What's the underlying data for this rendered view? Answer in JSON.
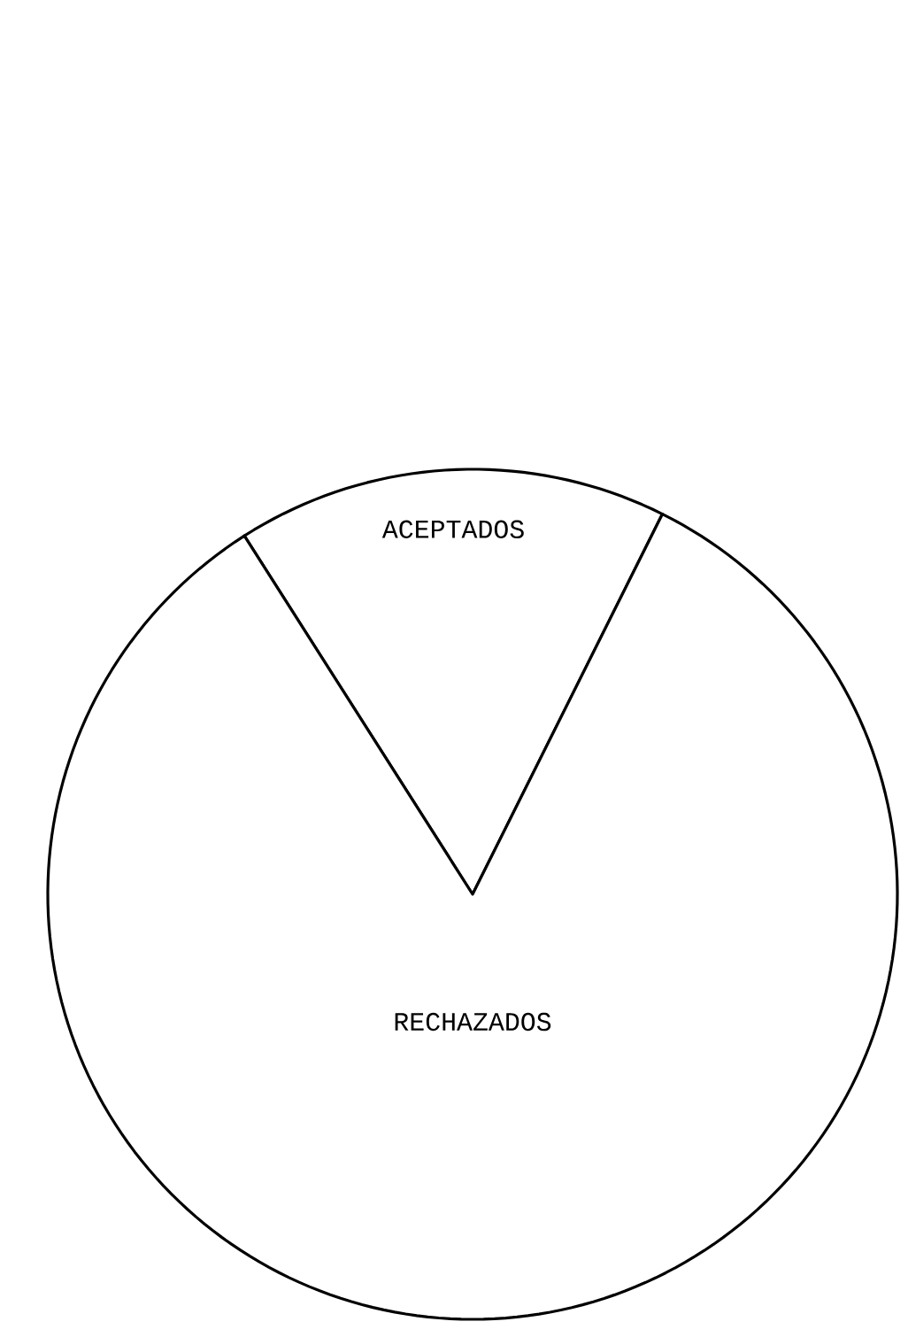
{
  "chart_data": {
    "type": "pie",
    "categories": [
      "ACEPTADOS",
      "RECHAZADOS"
    ],
    "values": [
      16.4,
      83.6
    ],
    "colors": [
      "#ffffff",
      "#ffffff"
    ]
  }
}
